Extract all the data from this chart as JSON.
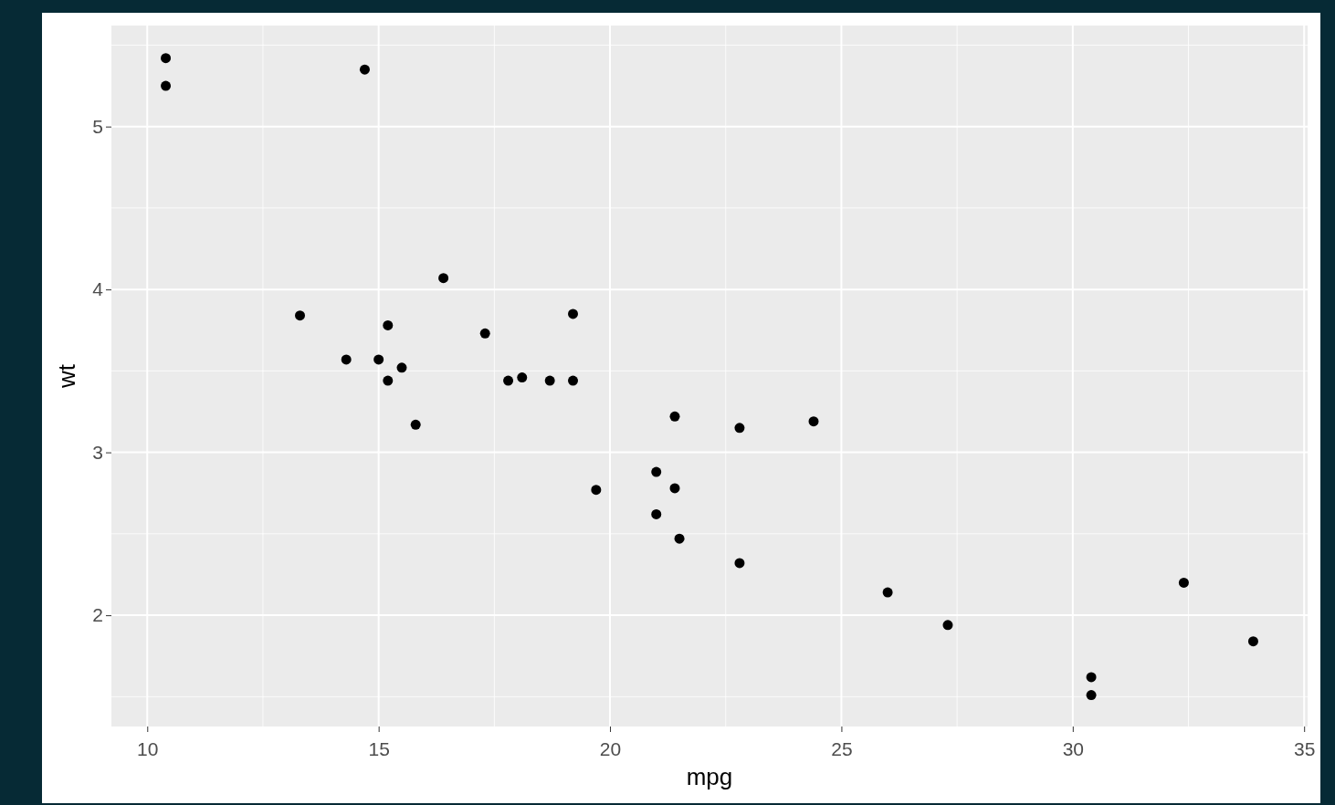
{
  "chart_data": {
    "type": "scatter",
    "xlabel": "mpg",
    "ylabel": "wt",
    "x": [
      21.0,
      21.0,
      22.8,
      21.4,
      18.7,
      18.1,
      14.3,
      24.4,
      22.8,
      19.2,
      17.8,
      16.4,
      17.3,
      15.2,
      10.4,
      10.4,
      14.7,
      32.4,
      30.4,
      33.9,
      21.5,
      15.5,
      15.2,
      13.3,
      19.2,
      27.3,
      26.0,
      30.4,
      15.8,
      19.7,
      15.0,
      21.4
    ],
    "values": [
      2.62,
      2.88,
      2.32,
      3.22,
      3.44,
      3.46,
      3.57,
      3.19,
      3.15,
      3.44,
      3.44,
      4.07,
      3.73,
      3.78,
      5.25,
      5.42,
      5.35,
      2.2,
      1.62,
      1.84,
      2.47,
      3.52,
      3.44,
      3.84,
      3.85,
      1.94,
      2.14,
      1.51,
      3.17,
      2.77,
      3.57,
      2.78
    ],
    "color": "#000000",
    "marker": "circle",
    "xlim": [
      9.225,
      35.075
    ],
    "xticks": [
      10,
      15,
      20,
      25,
      30,
      35
    ],
    "ylim": [
      1.317,
      5.62
    ],
    "yticks": [
      2,
      3,
      4,
      5
    ],
    "grid": true
  }
}
